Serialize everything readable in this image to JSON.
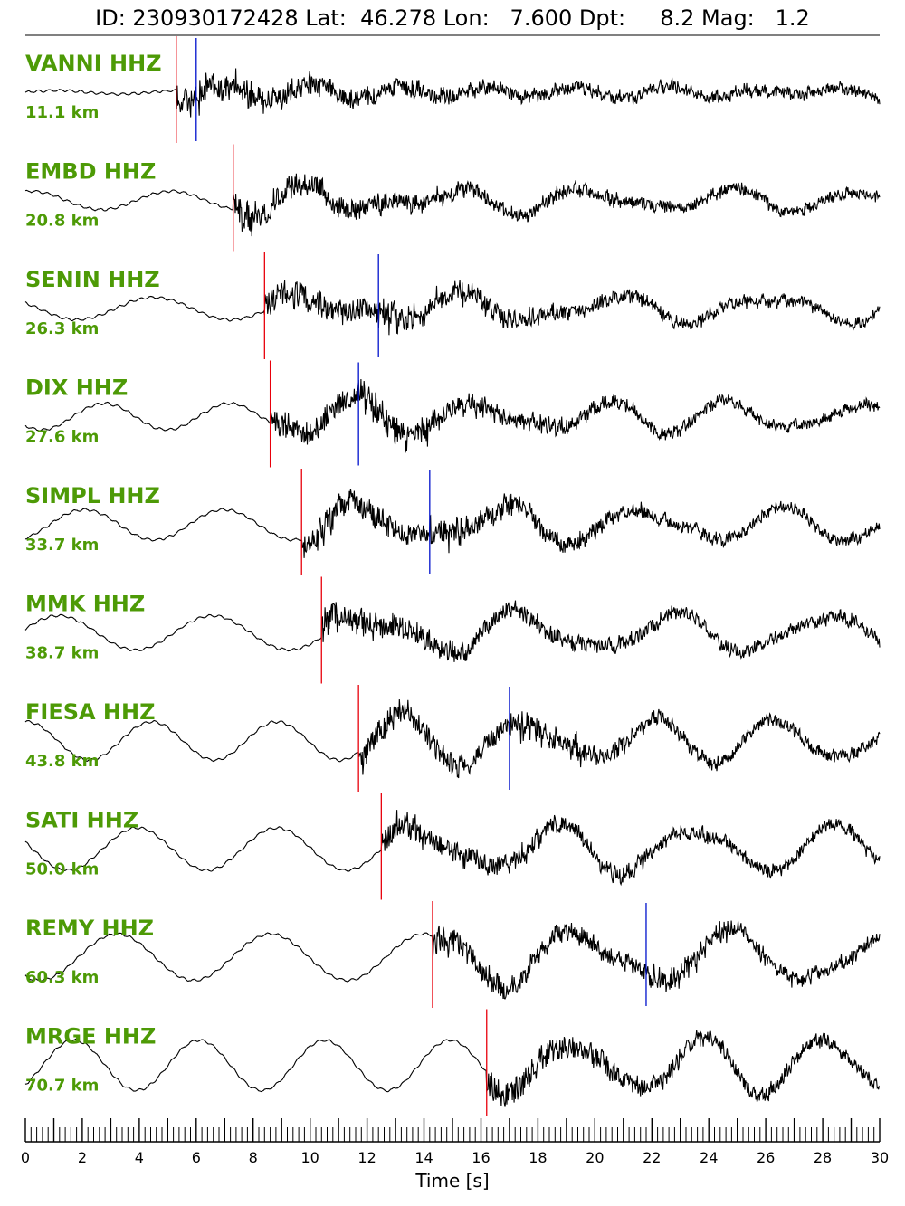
{
  "header": {
    "title": "ID: 230930172428 Lat:  46.278 Lon:   7.600 Dpt:     8.2 Mag:   1.2"
  },
  "colors": {
    "station_label": "#4d9a06",
    "p_pick": "#e8000b",
    "s_pick": "#0011cc",
    "trace": "#000000"
  },
  "chart_data": {
    "type": "line",
    "title": "ID: 230930172428 Lat:  46.278 Lon:   7.600 Dpt:     8.2 Mag:   1.2",
    "xlabel": "Time [s]",
    "ylabel": "",
    "xlim": [
      0,
      30
    ],
    "xtick_labels": [
      "0",
      "2",
      "4",
      "6",
      "8",
      "10",
      "12",
      "14",
      "16",
      "18",
      "20",
      "22",
      "24",
      "26",
      "28",
      "30"
    ],
    "grid": false,
    "traces": [
      {
        "station": "VANNI HHZ",
        "distance": "11.1 km",
        "p_pick": 5.3,
        "s_pick": 6.0
      },
      {
        "station": "EMBD HHZ",
        "distance": "20.8 km",
        "p_pick": 7.3,
        "s_pick": null
      },
      {
        "station": "SENIN HHZ",
        "distance": "26.3 km",
        "p_pick": 8.4,
        "s_pick": 12.4
      },
      {
        "station": "DIX HHZ",
        "distance": "27.6 km",
        "p_pick": 8.6,
        "s_pick": 11.7
      },
      {
        "station": "SIMPL HHZ",
        "distance": "33.7 km",
        "p_pick": 9.7,
        "s_pick": 14.2
      },
      {
        "station": "MMK HHZ",
        "distance": "38.7 km",
        "p_pick": 10.4,
        "s_pick": null
      },
      {
        "station": "FIESA HHZ",
        "distance": "43.8 km",
        "p_pick": 11.7,
        "s_pick": 17.0
      },
      {
        "station": "SATI HHZ",
        "distance": "50.0 km",
        "p_pick": 12.5,
        "s_pick": null
      },
      {
        "station": "REMY HHZ",
        "distance": "60.3 km",
        "p_pick": 14.3,
        "s_pick": 21.8
      },
      {
        "station": "MRGE HHZ",
        "distance": "70.7 km",
        "p_pick": 16.2,
        "s_pick": null
      }
    ]
  }
}
